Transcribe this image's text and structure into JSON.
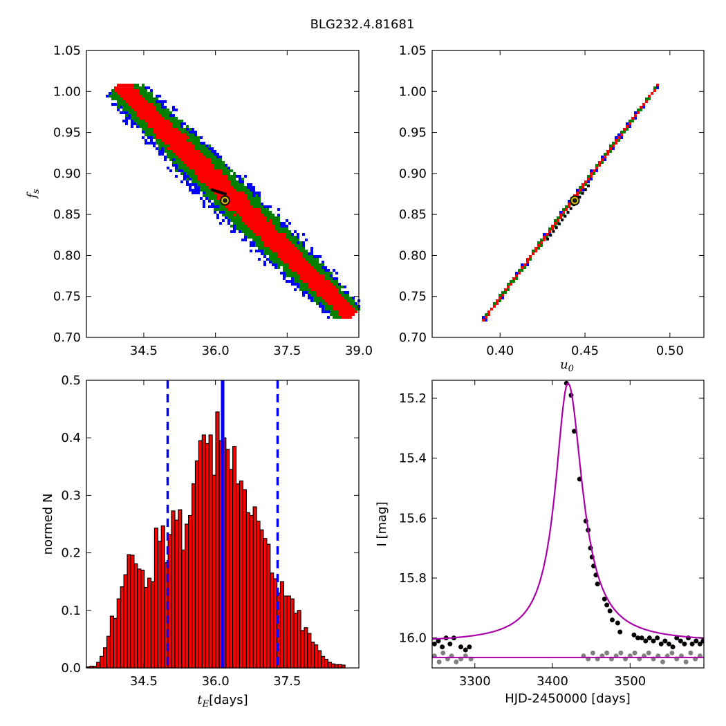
{
  "figure": {
    "title": "BLG232.4.81681"
  },
  "chart_data": [
    {
      "type": "heatmap",
      "xlabel": "",
      "ylabel": "f_s",
      "xlim": [
        33.3,
        39.0
      ],
      "ylim": [
        0.7,
        1.05
      ],
      "xticks": [
        34.5,
        36.0,
        37.5,
        39.0
      ],
      "xtick_labels": [
        "34.5",
        "36.0",
        "37.5",
        "39.0"
      ],
      "yticks": [
        0.7,
        0.75,
        0.8,
        0.85,
        0.9,
        0.95,
        1.0,
        1.05
      ],
      "ytick_labels": [
        "0.70",
        "0.75",
        "0.80",
        "0.85",
        "0.90",
        "0.95",
        "1.00",
        "1.05"
      ],
      "confidence_region": {
        "colors": {
          "inner": "#ff0000",
          "middle": "#007f00",
          "outer": "#0000ff",
          "best": "#000000"
        },
        "centerline": [
          [
            33.95,
            1.01
          ],
          [
            38.85,
            0.725
          ]
        ],
        "half_widths": {
          "inner": 0.017,
          "middle": 0.03,
          "outer": 0.038
        },
        "best_cluster": [
          [
            35.93,
            0.88
          ],
          [
            36.2,
            0.875
          ]
        ]
      },
      "best_fit": {
        "x": 36.2,
        "y": 0.867
      }
    },
    {
      "type": "heatmap",
      "xlabel": "u_0",
      "ylabel": "",
      "xlim": [
        0.36,
        0.52
      ],
      "ylim": [
        0.7,
        1.05
      ],
      "xticks": [
        0.4,
        0.45,
        0.5
      ],
      "xtick_labels": [
        "0.40",
        "0.45",
        "0.50"
      ],
      "yticks": [
        0.7,
        0.75,
        0.8,
        0.85,
        0.9,
        0.95,
        1.0,
        1.05
      ],
      "ytick_labels": [
        "0.70",
        "0.75",
        "0.80",
        "0.85",
        "0.90",
        "0.95",
        "1.00",
        "1.05"
      ],
      "confidence_region": {
        "colors": {
          "inner": "#ff0000",
          "middle": "#007f00",
          "outer": "#0000ff",
          "best": "#000000"
        },
        "centerline": [
          [
            0.39,
            0.72
          ],
          [
            0.493,
            1.008
          ]
        ],
        "half_widths": {
          "inner": 0.0023,
          "middle": 0.0038,
          "outer": 0.005
        },
        "best_segment": [
          [
            0.428,
            0.82
          ],
          [
            0.452,
            0.885
          ]
        ]
      },
      "best_fit": {
        "x": 0.444,
        "y": 0.867
      }
    },
    {
      "type": "bar",
      "xlabel_math": "t_E",
      "xlabel_unit": "[days]",
      "ylabel": "normed N",
      "xlim": [
        33.3,
        39.0
      ],
      "ylim": [
        0.0,
        0.5
      ],
      "xticks": [
        34.5,
        36.0,
        37.5
      ],
      "xtick_labels": [
        "34.5",
        "36.0",
        "37.5"
      ],
      "yticks": [
        0.0,
        0.1,
        0.2,
        0.3,
        0.4,
        0.5
      ],
      "ytick_labels": [
        "0.0",
        "0.1",
        "0.2",
        "0.3",
        "0.4",
        "0.5"
      ],
      "bin_start": 33.3,
      "bin_width": 0.0712,
      "values": [
        0.002,
        0.003,
        0.003,
        0.01,
        0.02,
        0.035,
        0.055,
        0.09,
        0.086,
        0.12,
        0.141,
        0.162,
        0.197,
        0.196,
        0.181,
        0.172,
        0.17,
        0.14,
        0.156,
        0.15,
        0.243,
        0.22,
        0.247,
        0.183,
        0.232,
        0.273,
        0.257,
        0.275,
        0.205,
        0.25,
        0.265,
        0.32,
        0.36,
        0.395,
        0.405,
        0.39,
        0.405,
        0.335,
        0.445,
        0.395,
        0.4,
        0.38,
        0.345,
        0.385,
        0.32,
        0.325,
        0.31,
        0.27,
        0.265,
        0.28,
        0.255,
        0.24,
        0.225,
        0.215,
        0.165,
        0.155,
        0.13,
        0.15,
        0.125,
        0.125,
        0.12,
        0.095,
        0.1,
        0.065,
        0.07,
        0.06,
        0.045,
        0.04,
        0.03,
        0.02,
        0.015,
        0.01,
        0.007,
        0.006,
        0.006,
        0.005
      ],
      "bar_color": "#ff0000",
      "lines": [
        {
          "x": 35.0,
          "style": "dashed",
          "color": "#0000ff"
        },
        {
          "x": 36.15,
          "style": "solid",
          "color": "#0000ff"
        },
        {
          "x": 37.3,
          "style": "dashed",
          "color": "#0000ff"
        }
      ]
    },
    {
      "type": "line",
      "xlabel": "HJD-2450000 [days]",
      "ylabel": "I [mag]",
      "xlim": [
        3245,
        3595
      ],
      "ylim": [
        16.1,
        15.14
      ],
      "y_inverted": true,
      "xticks": [
        3300,
        3400,
        3500
      ],
      "xtick_labels": [
        "3300",
        "3400",
        "3500"
      ],
      "yticks": [
        15.2,
        15.4,
        15.6,
        15.8,
        16.0
      ],
      "ytick_labels": [
        "15.2",
        "15.4",
        "15.6",
        "15.8",
        "16.0"
      ],
      "model": {
        "t0": 3420,
        "baseline": 16.015,
        "peak": 15.15,
        "rise_width": 22,
        "fall_width": 25,
        "color": "#aa00aa"
      },
      "residual_model": {
        "level": 16.065,
        "color": "#aa00aa"
      },
      "series": [
        {
          "color": "#000000",
          "points": [
            [
              3248,
              16.02
            ],
            [
              3253,
              16.01
            ],
            [
              3258,
              16.03
            ],
            [
              3263,
              16.0
            ],
            [
              3268,
              16.02
            ],
            [
              3273,
              16.0
            ],
            [
              3282,
              16.03
            ],
            [
              3288,
              16.04
            ],
            [
              3293,
              16.03
            ],
            [
              3418,
              15.15
            ],
            [
              3424,
              15.19
            ],
            [
              3428,
              15.31
            ],
            [
              3435,
              15.47
            ],
            [
              3443,
              15.61
            ],
            [
              3446,
              15.64
            ],
            [
              3449,
              15.7
            ],
            [
              3451,
              15.73
            ],
            [
              3453,
              15.76
            ],
            [
              3456,
              15.79
            ],
            [
              3458,
              15.82
            ],
            [
              3467,
              15.87
            ],
            [
              3470,
              15.89
            ],
            [
              3474,
              15.91
            ],
            [
              3477,
              15.94
            ],
            [
              3484,
              15.95
            ],
            [
              3487,
              15.98
            ],
            [
              3505,
              15.99
            ],
            [
              3510,
              16.0
            ],
            [
              3515,
              16.0
            ],
            [
              3520,
              16.01
            ],
            [
              3525,
              16.0
            ],
            [
              3530,
              16.01
            ],
            [
              3535,
              16.0
            ],
            [
              3540,
              16.02
            ],
            [
              3545,
              16.01
            ],
            [
              3550,
              16.02
            ],
            [
              3555,
              16.03
            ],
            [
              3560,
              16.0
            ],
            [
              3565,
              16.01
            ],
            [
              3570,
              16.02
            ],
            [
              3575,
              16.0
            ],
            [
              3580,
              16.02
            ],
            [
              3585,
              16.01
            ],
            [
              3590,
              16.02
            ],
            [
              3594,
              16.01
            ]
          ]
        },
        {
          "color": "#808080",
          "points": [
            [
              3248,
              16.06
            ],
            [
              3254,
              16.08
            ],
            [
              3259,
              16.05
            ],
            [
              3265,
              16.07
            ],
            [
              3270,
              16.06
            ],
            [
              3276,
              16.08
            ],
            [
              3282,
              16.07
            ],
            [
              3288,
              16.06
            ],
            [
              3295,
              16.07
            ],
            [
              3440,
              16.06
            ],
            [
              3446,
              16.07
            ],
            [
              3452,
              16.05
            ],
            [
              3458,
              16.07
            ],
            [
              3464,
              16.06
            ],
            [
              3470,
              16.05
            ],
            [
              3476,
              16.07
            ],
            [
              3482,
              16.06
            ],
            [
              3488,
              16.05
            ],
            [
              3494,
              16.07
            ],
            [
              3500,
              16.06
            ],
            [
              3506,
              16.05
            ],
            [
              3512,
              16.07
            ],
            [
              3518,
              16.06
            ],
            [
              3524,
              16.05
            ],
            [
              3530,
              16.07
            ],
            [
              3536,
              16.06
            ],
            [
              3542,
              16.08
            ],
            [
              3548,
              16.06
            ],
            [
              3554,
              16.05
            ],
            [
              3560,
              16.07
            ],
            [
              3566,
              16.06
            ],
            [
              3572,
              16.08
            ],
            [
              3578,
              16.05
            ],
            [
              3584,
              16.07
            ],
            [
              3590,
              16.06
            ]
          ]
        }
      ]
    }
  ]
}
